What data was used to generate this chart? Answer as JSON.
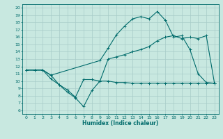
{
  "bg_color": "#c8e8e0",
  "line_color": "#006b6b",
  "grid_color": "#a8ccc8",
  "xlabel": "Humidex (Indice chaleur)",
  "xlim": [
    -0.5,
    23.5
  ],
  "ylim": [
    5.5,
    20.5
  ],
  "xticks": [
    0,
    1,
    2,
    3,
    4,
    5,
    6,
    7,
    8,
    9,
    10,
    11,
    12,
    13,
    14,
    15,
    16,
    17,
    18,
    19,
    20,
    21,
    22,
    23
  ],
  "yticks": [
    6,
    7,
    8,
    9,
    10,
    11,
    12,
    13,
    14,
    15,
    16,
    17,
    18,
    19,
    20
  ],
  "series1_x": [
    0,
    1,
    2,
    3,
    9,
    10,
    11,
    12,
    13,
    14,
    15,
    16,
    17,
    18,
    19,
    20,
    21,
    22,
    23
  ],
  "series1_y": [
    11.5,
    11.5,
    11.5,
    10.8,
    12.8,
    14.5,
    16.3,
    17.5,
    18.5,
    18.8,
    18.5,
    19.5,
    18.3,
    16.0,
    16.2,
    14.3,
    11.0,
    9.8,
    9.7
  ],
  "series2_x": [
    0,
    1,
    2,
    3,
    4,
    5,
    6,
    7,
    8,
    9,
    10,
    11,
    12,
    13,
    14,
    15,
    16,
    17,
    18,
    19,
    20,
    21,
    22,
    23
  ],
  "series2_y": [
    11.5,
    11.5,
    11.5,
    10.8,
    9.5,
    8.5,
    7.7,
    6.5,
    8.7,
    10.0,
    13.0,
    13.3,
    13.6,
    14.0,
    14.3,
    14.7,
    15.5,
    16.0,
    16.2,
    15.8,
    16.0,
    15.8,
    16.2,
    9.7
  ],
  "series3_x": [
    0,
    1,
    2,
    3,
    4,
    5,
    6,
    7,
    8,
    9,
    10,
    11,
    12,
    13,
    14,
    15,
    16,
    17,
    18,
    19,
    20,
    21,
    22,
    23
  ],
  "series3_y": [
    11.5,
    11.5,
    11.5,
    10.3,
    9.5,
    8.8,
    7.8,
    10.2,
    10.2,
    10.0,
    10.0,
    9.8,
    9.8,
    9.7,
    9.7,
    9.7,
    9.7,
    9.7,
    9.7,
    9.7,
    9.7,
    9.7,
    9.7,
    9.7
  ]
}
